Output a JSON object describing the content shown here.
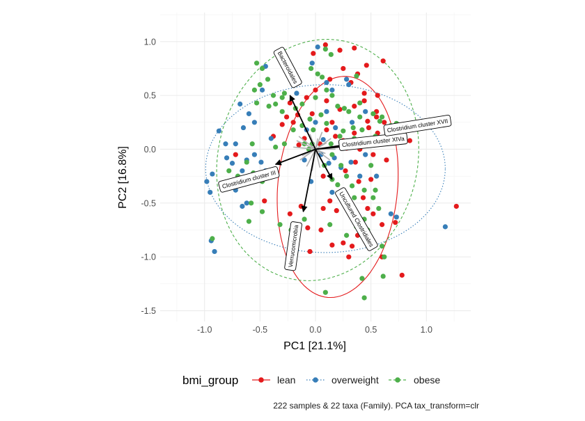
{
  "chart_data": {
    "type": "scatter",
    "subtype": "pca-biplot",
    "title": "",
    "xlabel": "PC1 [21.1%]",
    "ylabel": "PC2 [16.8%]",
    "xlim": [
      -1.4,
      1.4
    ],
    "ylim": [
      -1.6,
      1.27
    ],
    "xticks": [
      -1.0,
      -0.5,
      0.0,
      0.5,
      1.0
    ],
    "xtick_labels": [
      "-1.0",
      "-0.5",
      "0.0",
      "0.5",
      "1.0"
    ],
    "yticks": [
      -1.5,
      -1.0,
      -0.5,
      0.0,
      0.5,
      1.0
    ],
    "ytick_labels": [
      "-1.5",
      "-1.0",
      "-0.5",
      "0.0",
      "0.5",
      "1.0"
    ],
    "grid": true,
    "legend": {
      "title": "bmi_group",
      "position": "bottom",
      "entries": [
        {
          "label": "lean",
          "color": "#E41A1C",
          "linetype": "solid"
        },
        {
          "label": "overweight",
          "color": "#377EB8",
          "linetype": "dotted"
        },
        {
          "label": "obese",
          "color": "#4DAF4A",
          "linetype": "dashed"
        }
      ]
    },
    "caption": "222 samples & 22 taxa (Family). PCA tax_transform=clr",
    "ellipses": [
      {
        "group": "lean",
        "center": [
          0.2,
          -0.35
        ],
        "a": 1.03,
        "b": 0.54,
        "angle_deg": 85
      },
      {
        "group": "overweight",
        "center": [
          0.09,
          -0.18
        ],
        "a": 1.08,
        "b": 0.78,
        "angle_deg": 0
      },
      {
        "group": "obese",
        "center": [
          0.02,
          -0.1
        ],
        "a": 1.13,
        "b": 0.9,
        "angle_deg": 78
      }
    ],
    "arrows": [
      {
        "label": "Bacteroidales",
        "x": -0.23,
        "y": 0.5,
        "label_x": -0.25,
        "label_y": 0.76,
        "label_angle": 62
      },
      {
        "label": "Clostridium cluster III",
        "x": -0.36,
        "y": -0.14,
        "label_x": -0.6,
        "label_y": -0.28,
        "label_angle": -15
      },
      {
        "label": "Verrucomicrobia",
        "x": -0.11,
        "y": -0.58,
        "label_x": -0.2,
        "label_y": -0.9,
        "label_angle": -82
      },
      {
        "label": "Uncultured Clostridiales",
        "x": 0.15,
        "y": -0.28,
        "label_x": 0.37,
        "label_y": -0.65,
        "label_angle": 60
      },
      {
        "label": "Clostridium cluster XIVa",
        "x": 0.41,
        "y": 0.04,
        "label_x": 0.52,
        "label_y": 0.07,
        "label_angle": -6
      },
      {
        "label": "Clostridium cluster XVII",
        "x": 0.52,
        "y": 0.08,
        "label_x": 0.92,
        "label_y": 0.22,
        "label_angle": -9
      }
    ],
    "minor_arrows": [
      [
        -0.15,
        0.12
      ],
      [
        -0.12,
        -0.06
      ],
      [
        -0.05,
        0.14
      ],
      [
        0.04,
        -0.17
      ],
      [
        0.1,
        0.06
      ],
      [
        -0.2,
        0.02
      ],
      [
        0.06,
        0.16
      ],
      [
        0.13,
        -0.1
      ],
      [
        -0.08,
        -0.16
      ],
      [
        0.18,
        0.0
      ],
      [
        -0.14,
        -0.1
      ],
      [
        0.02,
        0.1
      ],
      [
        -0.03,
        -0.2
      ],
      [
        0.09,
        -0.04
      ],
      [
        -0.17,
        0.08
      ],
      [
        0.14,
        0.1
      ]
    ],
    "series": [
      {
        "name": "lean",
        "color": "#E41A1C",
        "points": [
          [
            0.09,
            0.97
          ],
          [
            0.22,
            0.92
          ],
          [
            0.35,
            0.94
          ],
          [
            0.46,
            0.78
          ],
          [
            0.61,
            0.82
          ],
          [
            0.38,
            0.7
          ],
          [
            0.25,
            0.75
          ],
          [
            0.13,
            0.65
          ],
          [
            0.56,
            0.5
          ],
          [
            0.44,
            0.45
          ],
          [
            0.35,
            0.4
          ],
          [
            0.22,
            0.37
          ],
          [
            0.1,
            0.45
          ],
          [
            0.0,
            0.55
          ],
          [
            -0.08,
            0.48
          ],
          [
            -0.23,
            0.43
          ],
          [
            0.55,
            0.3
          ],
          [
            0.47,
            0.26
          ],
          [
            0.62,
            0.25
          ],
          [
            0.77,
            0.2
          ],
          [
            0.85,
            0.08
          ],
          [
            0.93,
            0.22
          ],
          [
            0.56,
            0.15
          ],
          [
            0.48,
            0.2
          ],
          [
            0.35,
            0.15
          ],
          [
            0.18,
            0.12
          ],
          [
            0.1,
            0.18
          ],
          [
            0.04,
            0.05
          ],
          [
            -0.1,
            0.1
          ],
          [
            -0.2,
            0.25
          ],
          [
            -0.3,
            0.23
          ],
          [
            -0.26,
            0.3
          ],
          [
            -0.16,
            0.32
          ],
          [
            0.28,
            0.01
          ],
          [
            0.4,
            0.0
          ],
          [
            0.52,
            -0.05
          ],
          [
            0.64,
            -0.1
          ],
          [
            0.36,
            -0.12
          ],
          [
            0.27,
            -0.2
          ],
          [
            0.39,
            -0.3
          ],
          [
            0.5,
            -0.28
          ],
          [
            0.43,
            -0.45
          ],
          [
            0.47,
            -0.55
          ],
          [
            0.52,
            -0.6
          ],
          [
            0.6,
            -0.7
          ],
          [
            0.72,
            -0.68
          ],
          [
            0.38,
            -0.8
          ],
          [
            0.33,
            -0.9
          ],
          [
            0.25,
            -0.87
          ],
          [
            0.15,
            -0.89
          ],
          [
            0.05,
            -0.75
          ],
          [
            -0.05,
            -0.95
          ],
          [
            0.07,
            -0.55
          ],
          [
            0.13,
            -0.48
          ],
          [
            -0.13,
            -0.53
          ],
          [
            -0.23,
            -0.6
          ],
          [
            -0.46,
            -0.48
          ],
          [
            -0.07,
            -0.73
          ],
          [
            0.3,
            -1.0
          ],
          [
            0.78,
            -1.17
          ],
          [
            0.6,
            -1.0
          ],
          [
            1.27,
            -0.53
          ],
          [
            0.19,
            -0.57
          ],
          [
            -0.03,
            0.33
          ],
          [
            0.15,
            0.25
          ],
          [
            0.25,
            0.08
          ],
          [
            -0.15,
            0.04
          ],
          [
            0.07,
            -0.25
          ],
          [
            -0.38,
            0.12
          ],
          [
            0.44,
            0.52
          ],
          [
            0.32,
            0.62
          ],
          [
            -0.72,
            -0.05
          ],
          [
            -0.02,
            0.89
          ],
          [
            0.55,
            0.35
          ]
        ]
      },
      {
        "name": "overweight",
        "color": "#377EB8",
        "points": [
          [
            -0.87,
            0.17
          ],
          [
            -0.81,
            0.05
          ],
          [
            -0.68,
            0.42
          ],
          [
            -0.6,
            0.33
          ],
          [
            -0.48,
            0.55
          ],
          [
            -0.55,
            0.25
          ],
          [
            -0.4,
            0.1
          ],
          [
            -0.65,
            0.2
          ],
          [
            -0.72,
            0.05
          ],
          [
            -0.8,
            -0.08
          ],
          [
            -0.75,
            -0.13
          ],
          [
            -0.66,
            -0.2
          ],
          [
            -0.62,
            -0.1
          ],
          [
            -0.55,
            -0.05
          ],
          [
            -0.49,
            -0.12
          ],
          [
            -0.45,
            -0.2
          ],
          [
            -0.38,
            -0.25
          ],
          [
            -0.98,
            -0.3
          ],
          [
            -0.93,
            -0.23
          ],
          [
            -0.95,
            -0.4
          ],
          [
            -0.72,
            -0.38
          ],
          [
            -0.66,
            -0.53
          ],
          [
            -0.62,
            -0.5
          ],
          [
            -0.94,
            -0.85
          ],
          [
            -0.91,
            -0.95
          ],
          [
            -0.17,
            0.52
          ],
          [
            -0.03,
            0.8
          ],
          [
            0.1,
            0.62
          ],
          [
            0.15,
            0.55
          ],
          [
            0.28,
            0.65
          ],
          [
            0.3,
            0.6
          ],
          [
            0.0,
            0.25
          ],
          [
            -0.08,
            0.18
          ],
          [
            0.07,
            0.09
          ],
          [
            0.18,
            0.2
          ],
          [
            0.23,
            0.06
          ],
          [
            0.33,
            0.25
          ],
          [
            0.45,
            0.35
          ],
          [
            0.05,
            -0.05
          ],
          [
            0.12,
            -0.13
          ],
          [
            -0.1,
            -0.1
          ],
          [
            0.23,
            -0.17
          ],
          [
            0.32,
            -0.12
          ],
          [
            0.4,
            -0.25
          ],
          [
            0.55,
            -0.25
          ],
          [
            0.68,
            -0.6
          ],
          [
            0.73,
            -0.63
          ],
          [
            0.17,
            -0.08
          ],
          [
            0.45,
            -0.05
          ],
          [
            -0.04,
            -0.3
          ],
          [
            0.15,
            -0.4
          ],
          [
            1.17,
            -0.72
          ],
          [
            -0.45,
            0.77
          ],
          [
            0.02,
            0.95
          ],
          [
            0.1,
            0.35
          ]
        ]
      },
      {
        "name": "obese",
        "color": "#4DAF4A",
        "points": [
          [
            0.09,
            0.93
          ],
          [
            0.14,
            0.88
          ],
          [
            -0.53,
            0.8
          ],
          [
            -0.48,
            0.75
          ],
          [
            -0.43,
            0.65
          ],
          [
            -0.5,
            0.6
          ],
          [
            -0.55,
            0.55
          ],
          [
            -0.38,
            0.5
          ],
          [
            -0.3,
            0.48
          ],
          [
            -0.28,
            0.52
          ],
          [
            -0.36,
            0.42
          ],
          [
            -0.42,
            0.4
          ],
          [
            -0.53,
            0.43
          ],
          [
            -0.3,
            0.35
          ],
          [
            -0.18,
            0.38
          ],
          [
            -0.12,
            0.42
          ],
          [
            -0.04,
            0.75
          ],
          [
            0.02,
            0.7
          ],
          [
            0.06,
            0.67
          ],
          [
            0.1,
            0.55
          ],
          [
            0.0,
            0.48
          ],
          [
            0.15,
            0.5
          ],
          [
            0.2,
            0.4
          ],
          [
            0.26,
            0.38
          ],
          [
            0.4,
            0.43
          ],
          [
            0.6,
            0.3
          ],
          [
            0.58,
            0.26
          ],
          [
            0.68,
            0.22
          ],
          [
            0.73,
            0.24
          ],
          [
            0.8,
            0.2
          ],
          [
            0.66,
            0.18
          ],
          [
            0.54,
            0.12
          ],
          [
            0.42,
            0.18
          ],
          [
            0.34,
            0.2
          ],
          [
            0.25,
            0.17
          ],
          [
            0.22,
            0.12
          ],
          [
            0.14,
            0.05
          ],
          [
            -0.06,
            0.0
          ],
          [
            -0.1,
            0.05
          ],
          [
            -0.28,
            0.05
          ],
          [
            -0.36,
            0.02
          ],
          [
            -0.12,
            0.22
          ],
          [
            -0.02,
            0.18
          ],
          [
            0.05,
            0.32
          ],
          [
            -0.57,
            0.05
          ],
          [
            -0.62,
            -0.12
          ],
          [
            -0.78,
            -0.2
          ],
          [
            -0.7,
            -0.25
          ],
          [
            -0.62,
            -0.28
          ],
          [
            -0.56,
            -0.22
          ],
          [
            -0.48,
            -0.3
          ],
          [
            -0.58,
            -0.5
          ],
          [
            -0.6,
            -0.67
          ],
          [
            -0.48,
            -0.58
          ],
          [
            -0.32,
            -0.7
          ],
          [
            -0.22,
            -0.75
          ],
          [
            -0.1,
            -0.65
          ],
          [
            0.15,
            -0.05
          ],
          [
            0.23,
            -0.15
          ],
          [
            0.28,
            -0.25
          ],
          [
            0.15,
            -0.28
          ],
          [
            0.2,
            -0.33
          ],
          [
            0.33,
            -0.34
          ],
          [
            0.35,
            -0.45
          ],
          [
            0.44,
            -0.38
          ],
          [
            0.54,
            -0.38
          ],
          [
            0.52,
            -0.45
          ],
          [
            0.57,
            -0.55
          ],
          [
            0.44,
            -0.65
          ],
          [
            0.47,
            -0.75
          ],
          [
            0.37,
            -0.72
          ],
          [
            0.13,
            -0.7
          ],
          [
            0.28,
            -0.8
          ],
          [
            0.6,
            -0.9
          ],
          [
            0.62,
            -1.0
          ],
          [
            0.42,
            -1.2
          ],
          [
            0.61,
            -1.18
          ],
          [
            0.09,
            -1.33
          ],
          [
            0.44,
            -1.38
          ],
          [
            -0.93,
            -0.83
          ],
          [
            -0.03,
            0.05
          ],
          [
            0.08,
            -0.15
          ],
          [
            0.4,
            0.3
          ],
          [
            0.52,
            0.33
          ],
          [
            -0.2,
            0.18
          ],
          [
            0.3,
            0.35
          ],
          [
            0.35,
            0.1
          ],
          [
            0.5,
            -0.15
          ],
          [
            0.1,
            0.24
          ],
          [
            -0.05,
            0.28
          ],
          [
            0.37,
            0.68
          ]
        ]
      }
    ]
  }
}
